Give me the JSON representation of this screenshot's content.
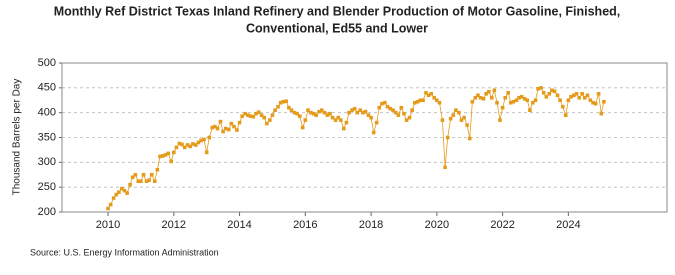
{
  "chart_data": {
    "type": "line",
    "title": [
      "Monthly Ref District Texas Inland Refinery and Blender Production of Motor Gasoline, Finished,",
      "Conventional, Ed55 and Lower"
    ],
    "y_label": "Thousand Barrels per Day",
    "source": "Source: U.S. Energy Information Administration",
    "color": "#e49b1b",
    "grid": true,
    "xlim": [
      2008.6,
      2027.0
    ],
    "xticks": [
      2010,
      2012,
      2014,
      2016,
      2018,
      2020,
      2022,
      2024
    ],
    "ylim": [
      200,
      500
    ],
    "yticks": [
      200,
      250,
      300,
      350,
      400,
      450,
      500
    ],
    "x": [
      2010.0,
      2010.08,
      2010.17,
      2010.25,
      2010.33,
      2010.42,
      2010.5,
      2010.58,
      2010.67,
      2010.75,
      2010.83,
      2010.92,
      2011.0,
      2011.08,
      2011.17,
      2011.25,
      2011.33,
      2011.42,
      2011.5,
      2011.58,
      2011.67,
      2011.75,
      2011.83,
      2011.92,
      2012.0,
      2012.08,
      2012.17,
      2012.25,
      2012.33,
      2012.42,
      2012.5,
      2012.58,
      2012.67,
      2012.75,
      2012.83,
      2012.92,
      2013.0,
      2013.08,
      2013.17,
      2013.25,
      2013.33,
      2013.42,
      2013.5,
      2013.58,
      2013.67,
      2013.75,
      2013.83,
      2013.92,
      2014.0,
      2014.08,
      2014.17,
      2014.25,
      2014.33,
      2014.42,
      2014.5,
      2014.58,
      2014.67,
      2014.75,
      2014.83,
      2014.92,
      2015.0,
      2015.08,
      2015.17,
      2015.25,
      2015.33,
      2015.42,
      2015.5,
      2015.58,
      2015.67,
      2015.75,
      2015.83,
      2015.92,
      2016.0,
      2016.08,
      2016.17,
      2016.25,
      2016.33,
      2016.42,
      2016.5,
      2016.58,
      2016.67,
      2016.75,
      2016.83,
      2016.92,
      2017.0,
      2017.08,
      2017.17,
      2017.25,
      2017.33,
      2017.42,
      2017.5,
      2017.58,
      2017.67,
      2017.75,
      2017.83,
      2017.92,
      2018.0,
      2018.08,
      2018.17,
      2018.25,
      2018.33,
      2018.42,
      2018.5,
      2018.58,
      2018.67,
      2018.75,
      2018.83,
      2018.92,
      2019.0,
      2019.08,
      2019.17,
      2019.25,
      2019.33,
      2019.42,
      2019.5,
      2019.58,
      2019.67,
      2019.75,
      2019.83,
      2019.92,
      2020.0,
      2020.08,
      2020.17,
      2020.25,
      2020.33,
      2020.42,
      2020.5,
      2020.58,
      2020.67,
      2020.75,
      2020.83,
      2020.92,
      2021.0,
      2021.08,
      2021.17,
      2021.25,
      2021.33,
      2021.42,
      2021.5,
      2021.58,
      2021.67,
      2021.75,
      2021.83,
      2021.92,
      2022.0,
      2022.08,
      2022.17,
      2022.25,
      2022.33,
      2022.42,
      2022.5,
      2022.58,
      2022.67,
      2022.75,
      2022.83,
      2022.92,
      2023.0,
      2023.08,
      2023.17,
      2023.25,
      2023.33,
      2023.42,
      2023.5,
      2023.58,
      2023.67,
      2023.75,
      2023.83,
      2023.92,
      2024.0,
      2024.08,
      2024.17,
      2024.25,
      2024.33,
      2024.42,
      2024.5,
      2024.58,
      2024.67,
      2024.75,
      2024.83,
      2024.92,
      2025.0,
      2025.08
    ],
    "values": [
      207,
      215,
      228,
      235,
      240,
      247,
      243,
      238,
      255,
      270,
      275,
      262,
      262,
      275,
      262,
      264,
      275,
      262,
      285,
      312,
      313,
      315,
      318,
      302,
      320,
      330,
      338,
      336,
      330,
      335,
      332,
      337,
      335,
      340,
      344,
      346,
      320,
      350,
      370,
      372,
      368,
      382,
      362,
      368,
      366,
      378,
      372,
      365,
      380,
      393,
      398,
      395,
      393,
      392,
      398,
      401,
      395,
      390,
      378,
      385,
      395,
      405,
      412,
      420,
      422,
      423,
      410,
      405,
      400,
      398,
      393,
      370,
      385,
      405,
      400,
      398,
      395,
      402,
      405,
      400,
      395,
      398,
      390,
      385,
      390,
      385,
      368,
      380,
      400,
      405,
      408,
      400,
      405,
      400,
      402,
      395,
      390,
      360,
      380,
      410,
      418,
      420,
      412,
      408,
      405,
      400,
      395,
      410,
      398,
      385,
      390,
      405,
      420,
      422,
      425,
      425,
      440,
      435,
      438,
      430,
      425,
      420,
      385,
      290,
      350,
      388,
      395,
      405,
      400,
      385,
      390,
      375,
      348,
      422,
      430,
      435,
      430,
      428,
      438,
      442,
      430,
      445,
      420,
      385,
      410,
      430,
      440,
      420,
      422,
      425,
      430,
      432,
      428,
      425,
      405,
      420,
      425,
      448,
      450,
      440,
      432,
      438,
      445,
      443,
      435,
      425,
      412,
      395,
      425,
      432,
      435,
      438,
      430,
      438,
      430,
      435,
      425,
      420,
      418,
      438,
      398,
      422
    ]
  }
}
